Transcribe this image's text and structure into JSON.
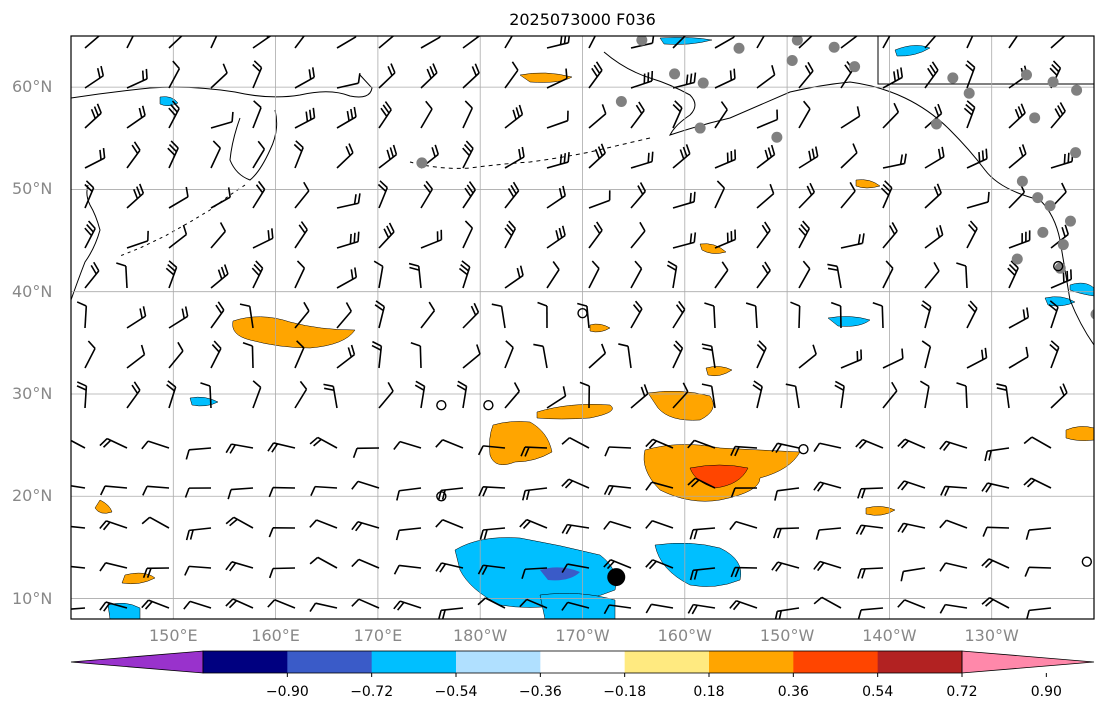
{
  "title": "2025073000 F036",
  "map": {
    "lon_range": [
      140,
      240
    ],
    "lat_range": [
      8,
      65
    ],
    "lat_labels": [
      {
        "lat": 60,
        "text": "60°N"
      },
      {
        "lat": 50,
        "text": "50°N"
      },
      {
        "lat": 40,
        "text": "40°N"
      },
      {
        "lat": 30,
        "text": "30°N"
      },
      {
        "lat": 20,
        "text": "20°N"
      },
      {
        "lat": 10,
        "text": "10°N"
      }
    ],
    "lon_labels": [
      {
        "lon": 150,
        "text": "150°E"
      },
      {
        "lon": 160,
        "text": "160°E"
      },
      {
        "lon": 170,
        "text": "170°E"
      },
      {
        "lon": 180,
        "text": "180°W"
      },
      {
        "lon": 190,
        "text": "170°W"
      },
      {
        "lon": 200,
        "text": "160°W"
      },
      {
        "lon": 210,
        "text": "150°W"
      },
      {
        "lon": 220,
        "text": "140°W"
      },
      {
        "lon": 230,
        "text": "130°W"
      }
    ],
    "gray_stations": [
      [
        195.8,
        64.6
      ],
      [
        199.0,
        61.3
      ],
      [
        205.3,
        63.8
      ],
      [
        211.0,
        64.6
      ],
      [
        214.6,
        63.9
      ],
      [
        201.8,
        60.4
      ],
      [
        216.6,
        62.0
      ],
      [
        210.5,
        62.6
      ],
      [
        193.8,
        58.6
      ],
      [
        226.2,
        60.9
      ],
      [
        227.8,
        59.4
      ],
      [
        233.4,
        61.2
      ],
      [
        236.0,
        60.5
      ],
      [
        238.3,
        59.7
      ],
      [
        201.5,
        56.0
      ],
      [
        224.6,
        56.4
      ],
      [
        234.2,
        57.0
      ],
      [
        209.0,
        55.1
      ],
      [
        238.2,
        53.6
      ],
      [
        174.3,
        52.6
      ],
      [
        233.0,
        50.8
      ],
      [
        234.5,
        49.2
      ],
      [
        235.7,
        48.4
      ],
      [
        237.7,
        46.9
      ],
      [
        235.0,
        45.8
      ],
      [
        237.0,
        44.6
      ],
      [
        236.7,
        42.3
      ],
      [
        240.2,
        37.8
      ],
      [
        232.5,
        43.2
      ]
    ],
    "open_circles": [
      [
        190.0,
        37.9
      ],
      [
        176.2,
        28.9
      ],
      [
        180.8,
        28.9
      ],
      [
        176.2,
        20.0
      ],
      [
        211.6,
        24.6
      ],
      [
        239.3,
        13.6
      ],
      [
        236.5,
        42.5
      ]
    ],
    "black_dot": [
      193.3,
      12.1
    ]
  },
  "colorbar": {
    "colors": [
      "#9932cc",
      "#000080",
      "#3a5bc8",
      "#00bfff",
      "#b0e0ff",
      "#ffffff",
      "#ffea80",
      "#ffa500",
      "#ff4500",
      "#b22222",
      "#ff88aa"
    ],
    "tick_labels": [
      "−0.90",
      "−0.72",
      "−0.54",
      "−0.36",
      "−0.18",
      "0.18",
      "0.36",
      "0.54",
      "0.72",
      "0.90"
    ]
  }
}
